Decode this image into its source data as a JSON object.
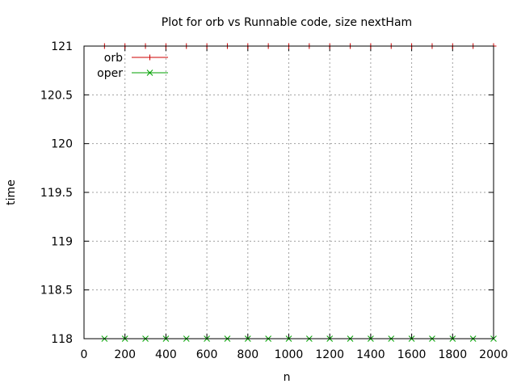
{
  "chart_data": {
    "type": "line",
    "title": "Plot for orb vs Runnable code, size nextHam",
    "xlabel": "n",
    "ylabel": "time",
    "xlim": [
      0,
      2000
    ],
    "ylim": [
      118,
      121
    ],
    "xticks": [
      "0",
      "200",
      "400",
      "600",
      "800",
      "1000",
      "1200",
      "1400",
      "1600",
      "1800",
      "2000"
    ],
    "yticks": [
      "118",
      "118.5",
      "119",
      "119.5",
      "120",
      "120.5",
      "121"
    ],
    "grid": true,
    "legend_position": "top-left",
    "x": [
      100,
      200,
      300,
      400,
      500,
      600,
      700,
      800,
      900,
      1000,
      1100,
      1200,
      1300,
      1400,
      1500,
      1600,
      1700,
      1800,
      1900,
      2000
    ],
    "series": [
      {
        "name": "orb",
        "color": "#cc0000",
        "marker": "plus",
        "values": [
          121,
          121,
          121,
          121,
          121,
          121,
          121,
          121,
          121,
          121,
          121,
          121,
          121,
          121,
          121,
          121,
          121,
          121,
          121,
          121
        ]
      },
      {
        "name": "oper",
        "color": "#00a000",
        "marker": "cross",
        "values": [
          118,
          118,
          118,
          118,
          118,
          118,
          118,
          118,
          118,
          118,
          118,
          118,
          118,
          118,
          118,
          118,
          118,
          118,
          118,
          118
        ]
      }
    ]
  }
}
